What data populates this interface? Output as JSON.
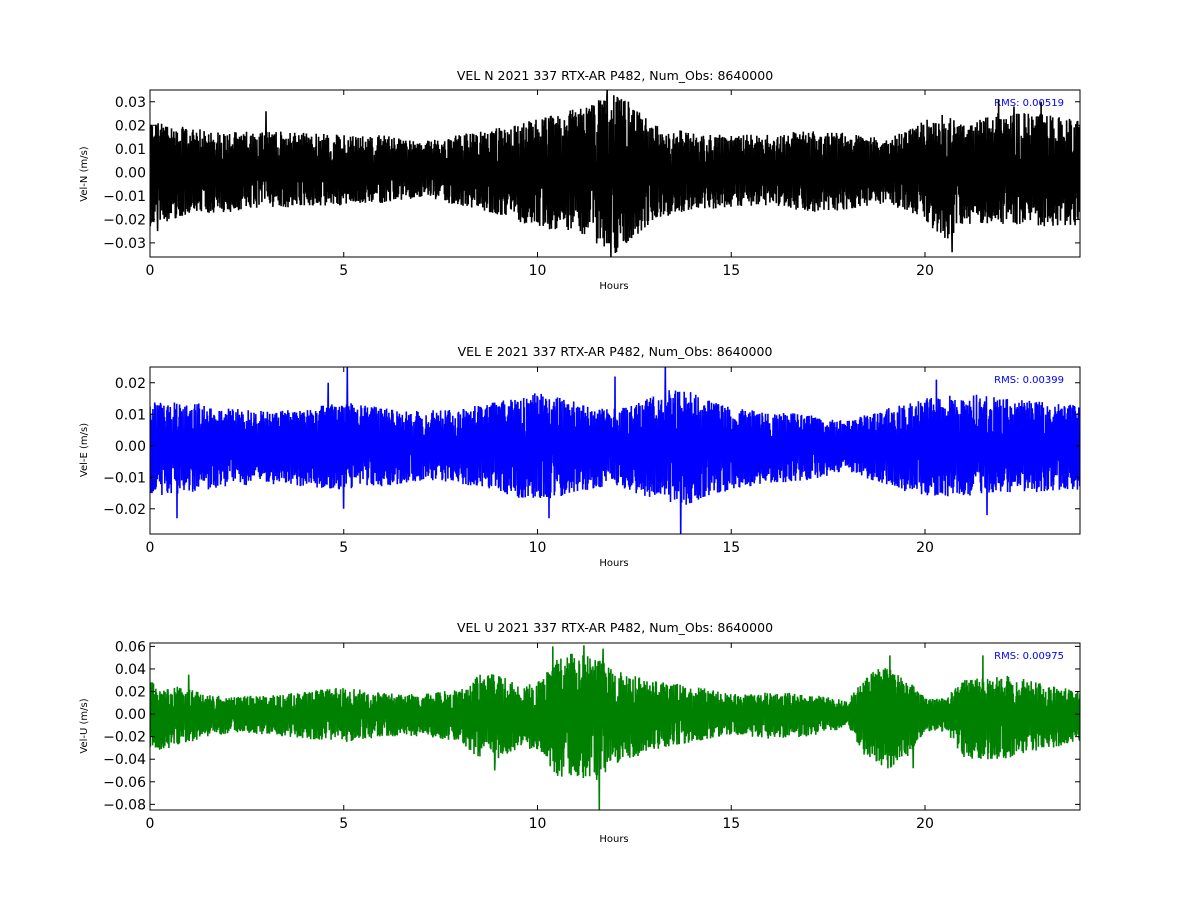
{
  "chart_data": [
    {
      "type": "line",
      "title": "VEL N 2021 337 RTX-AR  P482, Num_Obs: 8640000",
      "xlabel": "Hours",
      "ylabel": "Vel-N (m/s)",
      "xlim": [
        0,
        24
      ],
      "ylim": [
        -0.036,
        0.035
      ],
      "xticks": [
        0,
        5,
        10,
        15,
        20
      ],
      "yticks": [
        -0.03,
        -0.02,
        -0.01,
        0.0,
        0.01,
        0.02,
        0.03
      ],
      "ytick_labels": [
        "−0.03",
        "−0.02",
        "−0.01",
        "0.00",
        "0.01",
        "0.02",
        "0.03"
      ],
      "rms_label": "RMS:  0.00519",
      "color": "#000000",
      "grid": false,
      "series": [
        {
          "envelope": [
            [
              0,
              0.022,
              -0.023
            ],
            [
              1,
              0.019,
              -0.018
            ],
            [
              2,
              0.017,
              -0.017
            ],
            [
              3,
              0.018,
              -0.015
            ],
            [
              4,
              0.017,
              -0.015
            ],
            [
              5,
              0.016,
              -0.014
            ],
            [
              6,
              0.016,
              -0.013
            ],
            [
              7,
              0.013,
              -0.011
            ],
            [
              8,
              0.016,
              -0.014
            ],
            [
              9,
              0.019,
              -0.018
            ],
            [
              10,
              0.023,
              -0.024
            ],
            [
              11,
              0.027,
              -0.025
            ],
            [
              11.5,
              0.03,
              -0.03
            ],
            [
              12,
              0.035,
              -0.035
            ],
            [
              12.5,
              0.028,
              -0.028
            ],
            [
              13,
              0.02,
              -0.02
            ],
            [
              14,
              0.017,
              -0.016
            ],
            [
              15,
              0.016,
              -0.015
            ],
            [
              16,
              0.016,
              -0.014
            ],
            [
              17,
              0.018,
              -0.017
            ],
            [
              18,
              0.017,
              -0.016
            ],
            [
              19,
              0.014,
              -0.013
            ],
            [
              20,
              0.022,
              -0.02
            ],
            [
              20.5,
              0.025,
              -0.03
            ],
            [
              21,
              0.02,
              -0.022
            ],
            [
              22,
              0.026,
              -0.022
            ],
            [
              23,
              0.025,
              -0.023
            ],
            [
              24,
              0.022,
              -0.023
            ]
          ],
          "spikes": [
            [
              0.2,
              -0.025
            ],
            [
              3.0,
              0.026
            ],
            [
              11.8,
              0.035
            ],
            [
              11.9,
              -0.036
            ],
            [
              12.3,
              -0.03
            ],
            [
              20.7,
              -0.034
            ],
            [
              21.9,
              0.031
            ],
            [
              22.3,
              0.028
            ],
            [
              23.0,
              0.03
            ]
          ]
        }
      ]
    },
    {
      "type": "line",
      "title": "VEL E 2021 337 RTX-AR  P482, Num_Obs: 8640000",
      "xlabel": "Hours",
      "ylabel": "Vel-E (m/s)",
      "xlim": [
        0,
        24
      ],
      "ylim": [
        -0.028,
        0.025
      ],
      "xticks": [
        0,
        5,
        10,
        15,
        20
      ],
      "yticks": [
        -0.02,
        -0.01,
        0.0,
        0.01,
        0.02
      ],
      "ytick_labels": [
        "−0.02",
        "−0.01",
        "0.00",
        "0.01",
        "0.02"
      ],
      "rms_label": "RMS:  0.00399",
      "color": "#0000ff",
      "grid": false,
      "series": [
        {
          "envelope": [
            [
              0,
              0.015,
              -0.016
            ],
            [
              1,
              0.014,
              -0.015
            ],
            [
              2,
              0.012,
              -0.013
            ],
            [
              3,
              0.011,
              -0.012
            ],
            [
              4,
              0.012,
              -0.013
            ],
            [
              5,
              0.014,
              -0.014
            ],
            [
              6,
              0.012,
              -0.013
            ],
            [
              7,
              0.011,
              -0.011
            ],
            [
              8,
              0.012,
              -0.012
            ],
            [
              9,
              0.014,
              -0.015
            ],
            [
              10,
              0.017,
              -0.018
            ],
            [
              11,
              0.014,
              -0.015
            ],
            [
              12,
              0.012,
              -0.013
            ],
            [
              13,
              0.016,
              -0.017
            ],
            [
              13.7,
              0.019,
              -0.02
            ],
            [
              14,
              0.017,
              -0.018
            ],
            [
              15,
              0.012,
              -0.014
            ],
            [
              16,
              0.011,
              -0.012
            ],
            [
              17,
              0.01,
              -0.011
            ],
            [
              18,
              0.008,
              -0.008
            ],
            [
              19,
              0.012,
              -0.013
            ],
            [
              20,
              0.015,
              -0.016
            ],
            [
              21,
              0.017,
              -0.016
            ],
            [
              22,
              0.015,
              -0.015
            ],
            [
              23,
              0.014,
              -0.015
            ],
            [
              24,
              0.013,
              -0.014
            ]
          ],
          "spikes": [
            [
              0.7,
              -0.023
            ],
            [
              4.6,
              0.02
            ],
            [
              5.1,
              0.025
            ],
            [
              5.0,
              -0.02
            ],
            [
              10.3,
              -0.023
            ],
            [
              12.0,
              0.022
            ],
            [
              13.3,
              0.025
            ],
            [
              13.7,
              -0.028
            ],
            [
              20.3,
              0.021
            ],
            [
              21.6,
              -0.022
            ]
          ]
        }
      ]
    },
    {
      "type": "line",
      "title": "VEL U 2021 337 RTX-AR  P482, Num_Obs: 8640000",
      "xlabel": "Hours",
      "ylabel": "Vel-U (m/s)",
      "xlim": [
        0,
        24
      ],
      "ylim": [
        -0.085,
        0.063
      ],
      "xticks": [
        0,
        5,
        10,
        15,
        20
      ],
      "yticks": [
        -0.08,
        -0.06,
        -0.04,
        -0.02,
        0.0,
        0.02,
        0.04,
        0.06
      ],
      "ytick_labels": [
        "−0.08",
        "−0.06",
        "−0.04",
        "−0.02",
        "0.00",
        "0.02",
        "0.04",
        "0.06"
      ],
      "rms_label": "RMS:  0.00975",
      "color": "#008000",
      "grid": false,
      "series": [
        {
          "envelope": [
            [
              0,
              0.03,
              -0.035
            ],
            [
              1,
              0.022,
              -0.025
            ],
            [
              2,
              0.015,
              -0.017
            ],
            [
              3,
              0.017,
              -0.018
            ],
            [
              4,
              0.02,
              -0.022
            ],
            [
              5,
              0.024,
              -0.025
            ],
            [
              6,
              0.019,
              -0.02
            ],
            [
              7,
              0.018,
              -0.02
            ],
            [
              8,
              0.022,
              -0.024
            ],
            [
              8.5,
              0.035,
              -0.04
            ],
            [
              9,
              0.037,
              -0.042
            ],
            [
              9.5,
              0.025,
              -0.03
            ],
            [
              10,
              0.028,
              -0.032
            ],
            [
              10.5,
              0.05,
              -0.055
            ],
            [
              11,
              0.055,
              -0.06
            ],
            [
              11.5,
              0.05,
              -0.06
            ],
            [
              12,
              0.04,
              -0.045
            ],
            [
              13,
              0.03,
              -0.032
            ],
            [
              14,
              0.025,
              -0.025
            ],
            [
              15,
              0.018,
              -0.018
            ],
            [
              16,
              0.02,
              -0.022
            ],
            [
              17,
              0.018,
              -0.02
            ],
            [
              18,
              0.012,
              -0.012
            ],
            [
              18.5,
              0.035,
              -0.04
            ],
            [
              19,
              0.045,
              -0.05
            ],
            [
              19.5,
              0.032,
              -0.04
            ],
            [
              20,
              0.015,
              -0.015
            ],
            [
              20.5,
              0.014,
              -0.016
            ],
            [
              21,
              0.03,
              -0.04
            ],
            [
              22,
              0.035,
              -0.04
            ],
            [
              23,
              0.028,
              -0.032
            ],
            [
              24,
              0.02,
              -0.025
            ]
          ],
          "spikes": [
            [
              1.0,
              0.035
            ],
            [
              8.9,
              -0.05
            ],
            [
              10.4,
              0.06
            ],
            [
              11.2,
              0.061
            ],
            [
              11.6,
              -0.085
            ],
            [
              11.7,
              0.058
            ],
            [
              19.1,
              0.052
            ],
            [
              19.7,
              -0.048
            ],
            [
              21.5,
              0.052
            ]
          ]
        }
      ]
    }
  ]
}
